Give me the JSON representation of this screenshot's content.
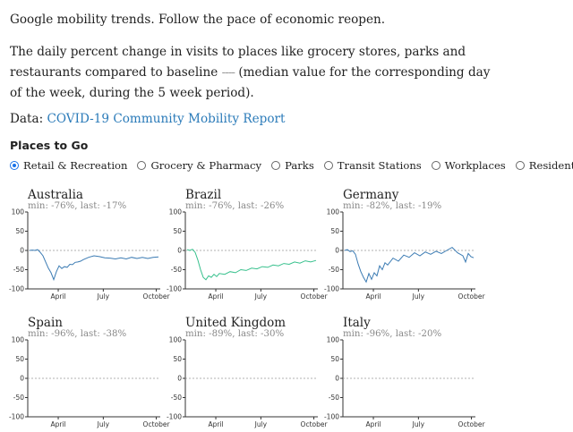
{
  "intro": {
    "line1": "Google mobility trends. Follow the pace of economic reopen.",
    "line2_before": "The daily percent change in visits to places like grocery stores, parks and restaurants compared to baseline ",
    "line2_dash": "----",
    "line2_after": " (median value for the corresponding day of the week, during the 5 week period).",
    "data_prefix": "Data: ",
    "data_link": "COVID-19 Community Mobility Report"
  },
  "places": {
    "title": "Places to Go",
    "options": [
      {
        "label": "Retail & Recreation",
        "checked": true
      },
      {
        "label": "Grocery & Pharmacy",
        "checked": false
      },
      {
        "label": "Parks",
        "checked": false
      },
      {
        "label": "Transit Stations",
        "checked": false
      },
      {
        "label": "Workplaces",
        "checked": false
      },
      {
        "label": "Residential",
        "checked": false
      }
    ]
  },
  "chart_data": [
    {
      "type": "line",
      "title": "Australia",
      "subtitle": "min: -76%, last: -17%",
      "color": "#3b7bb3",
      "ylim": [
        -100,
        100
      ],
      "yticks": [
        100,
        50,
        0,
        -50,
        -100
      ],
      "xticks": [
        "April",
        "July",
        "October"
      ],
      "baseline": 0,
      "x": [
        0,
        5,
        10,
        15,
        20,
        25,
        30,
        35,
        40,
        45,
        50,
        55,
        60,
        65,
        70,
        75,
        80,
        85,
        90,
        95,
        100,
        110,
        120,
        130,
        140,
        150,
        160,
        170,
        180,
        190,
        200,
        210,
        220,
        230,
        240
      ],
      "y": [
        0,
        1,
        0,
        2,
        -5,
        -14,
        -30,
        -46,
        -58,
        -76,
        -55,
        -40,
        -47,
        -42,
        -44,
        -36,
        -37,
        -31,
        -30,
        -28,
        -24,
        -18,
        -14,
        -16,
        -19,
        -20,
        -22,
        -19,
        -22,
        -18,
        -21,
        -18,
        -21,
        -18,
        -17
      ]
    },
    {
      "type": "line",
      "title": "Brazil",
      "subtitle": "min: -76%, last: -26%",
      "color": "#36c08c",
      "ylim": [
        -100,
        100
      ],
      "yticks": [
        100,
        50,
        0,
        -50,
        -100
      ],
      "xticks": [
        "April",
        "July",
        "October"
      ],
      "baseline": 0,
      "x": [
        0,
        5,
        10,
        15,
        20,
        25,
        30,
        35,
        40,
        45,
        50,
        55,
        60,
        70,
        80,
        90,
        100,
        110,
        120,
        130,
        140,
        150,
        160,
        170,
        180,
        190,
        200,
        210,
        220,
        230,
        240
      ],
      "y": [
        2,
        0,
        3,
        -5,
        -25,
        -50,
        -70,
        -76,
        -66,
        -70,
        -62,
        -68,
        -60,
        -62,
        -55,
        -58,
        -50,
        -52,
        -46,
        -48,
        -42,
        -44,
        -38,
        -40,
        -34,
        -36,
        -30,
        -33,
        -27,
        -30,
        -26
      ]
    },
    {
      "type": "line",
      "title": "Germany",
      "subtitle": "min: -82%, last: -19%",
      "color": "#3b7bb3",
      "ylim": [
        -100,
        100
      ],
      "yticks": [
        100,
        50,
        0,
        -50,
        -100
      ],
      "xticks": [
        "April",
        "July",
        "October"
      ],
      "baseline": 0,
      "x": [
        0,
        5,
        10,
        15,
        20,
        25,
        30,
        35,
        40,
        45,
        50,
        55,
        60,
        65,
        70,
        75,
        80,
        90,
        100,
        110,
        120,
        130,
        140,
        150,
        160,
        170,
        180,
        190,
        200,
        210,
        220,
        225,
        230,
        235,
        240
      ],
      "y": [
        0,
        2,
        -3,
        -1,
        -10,
        -35,
        -55,
        -70,
        -82,
        -60,
        -75,
        -58,
        -66,
        -40,
        -50,
        -32,
        -38,
        -20,
        -28,
        -12,
        -18,
        -6,
        -14,
        -4,
        -10,
        -2,
        -8,
        0,
        8,
        -6,
        -14,
        -30,
        -8,
        -16,
        -19
      ]
    },
    {
      "type": "line",
      "title": "Spain",
      "subtitle": "min: -96%, last: -38%",
      "color": "#3b7bb3",
      "ylim": [
        -100,
        100
      ],
      "yticks": [
        100,
        50,
        0,
        -50,
        -100
      ],
      "xticks": [
        "April",
        "July",
        "October"
      ],
      "baseline": 0,
      "x": [],
      "y": []
    },
    {
      "type": "line",
      "title": "United Kingdom",
      "subtitle": "min: -89%, last: -30%",
      "color": "#3b7bb3",
      "ylim": [
        -100,
        100
      ],
      "yticks": [
        100,
        50,
        0,
        -50,
        -100
      ],
      "xticks": [
        "April",
        "July",
        "October"
      ],
      "baseline": 0,
      "x": [],
      "y": []
    },
    {
      "type": "line",
      "title": "Italy",
      "subtitle": "min: -96%, last: -20%",
      "color": "#3b7bb3",
      "ylim": [
        -100,
        100
      ],
      "yticks": [
        100,
        50,
        0,
        -50,
        -100
      ],
      "xticks": [
        "April",
        "July",
        "October"
      ],
      "baseline": 0,
      "x": [],
      "y": []
    }
  ]
}
